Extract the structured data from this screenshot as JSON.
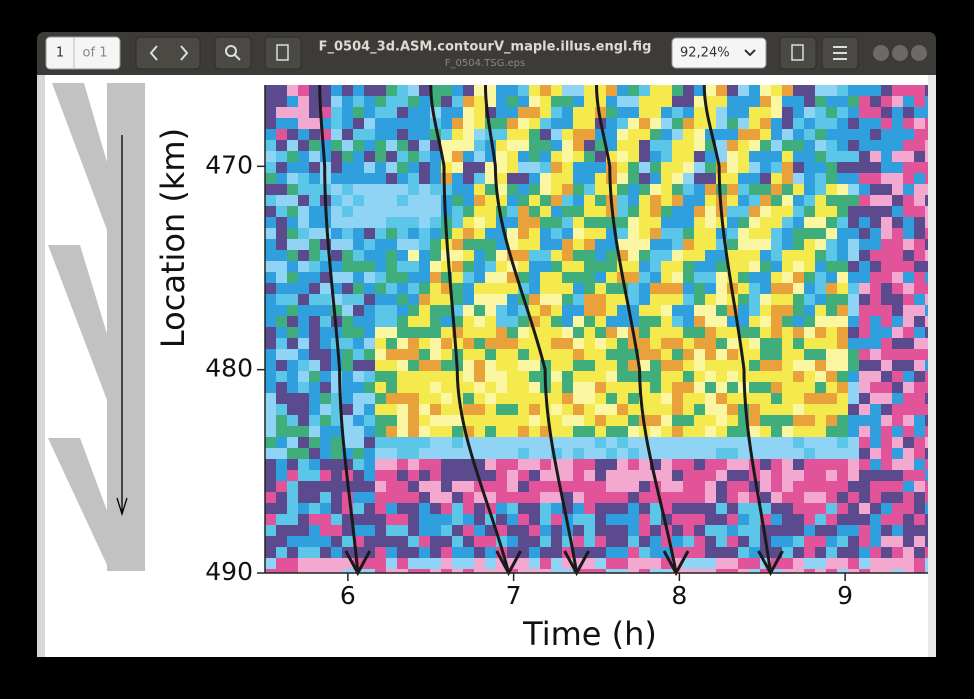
{
  "toolbar": {
    "page": "1",
    "page_count": "of 1",
    "title": "F_0504_3d.ASM.contourV_maple.illus.engl.fig",
    "subtitle": "F_0504.TSG.eps",
    "zoom": "92,24%"
  },
  "chart_data": {
    "type": "heatmap",
    "xlabel": "Time (h)",
    "ylabel": "Location (km)",
    "xlim": [
      5.5,
      9.5
    ],
    "xticks": [
      6,
      7,
      8,
      9
    ],
    "ylim": [
      466,
      490
    ],
    "yticks": [
      470,
      480,
      490
    ],
    "y_inverted": true,
    "locations": [
      466,
      470,
      480,
      490
    ],
    "line_color": "#1a1a1a",
    "series": [
      {
        "times": [
          5.83,
          5.86,
          5.95,
          6.06
        ]
      },
      {
        "times": [
          6.5,
          6.58,
          6.66,
          6.97
        ]
      },
      {
        "times": [
          6.83,
          6.89,
          7.19,
          7.38
        ]
      },
      {
        "times": [
          7.5,
          7.58,
          7.76,
          7.98
        ]
      },
      {
        "times": [
          8.15,
          8.24,
          8.39,
          8.55
        ]
      }
    ]
  }
}
